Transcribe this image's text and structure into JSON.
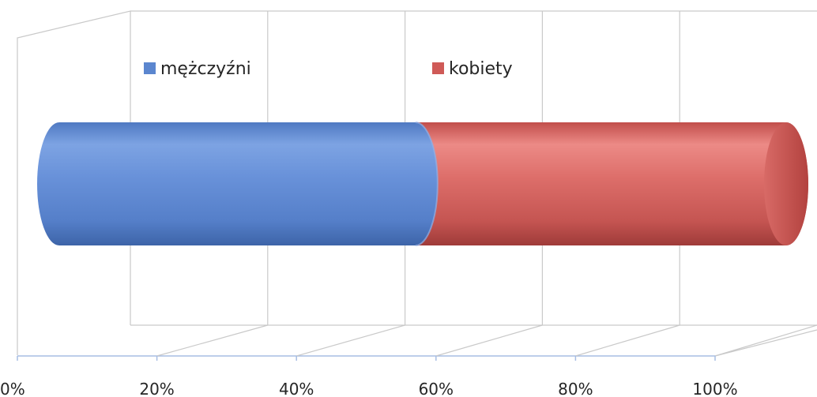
{
  "chart_data": {
    "type": "bar",
    "orientation": "horizontal",
    "stacked": "percent",
    "style": "3d-cylinder",
    "categories": [
      ""
    ],
    "series": [
      {
        "name": "mężczyźni",
        "values": [
          49
        ],
        "color": "#5b86cf"
      },
      {
        "name": "kobiety",
        "values": [
          51
        ],
        "color": "#cf5a57"
      }
    ],
    "xlim": [
      0,
      100
    ],
    "x_ticks": [
      "0%",
      "20%",
      "40%",
      "60%",
      "80%",
      "100%"
    ],
    "grid": true,
    "legend_position": "top"
  }
}
